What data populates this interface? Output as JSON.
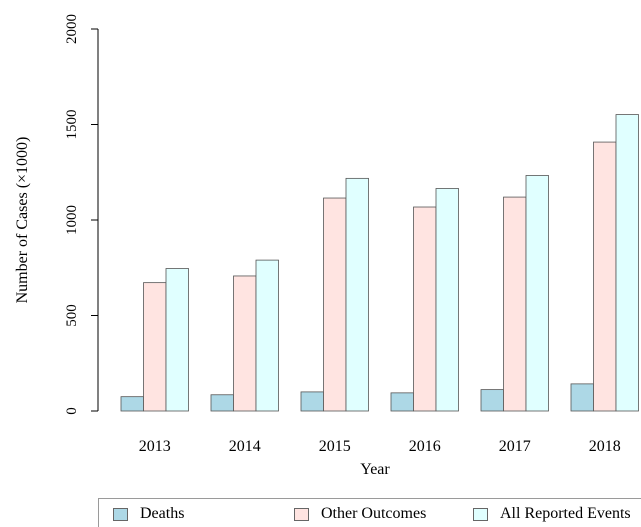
{
  "chart_data": {
    "type": "bar",
    "title": "",
    "xlabel": "Year",
    "ylabel": "Number of Cases (×1000)",
    "categories": [
      "2013",
      "2014",
      "2015",
      "2016",
      "2017",
      "2018"
    ],
    "ylim": [
      0,
      2000
    ],
    "yticks": [
      0,
      500,
      1000,
      1500,
      2000
    ],
    "grid": false,
    "legend_position": "bottom",
    "series": [
      {
        "name": "Deaths",
        "color": "#add8e6",
        "values": [
          75,
          85,
          100,
          95,
          112,
          142
        ]
      },
      {
        "name": "Other Outcomes",
        "color": "#ffe4e1",
        "values": [
          672,
          707,
          1115,
          1068,
          1120,
          1408
        ]
      },
      {
        "name": "All Reported Events",
        "color": "#e0ffff",
        "values": [
          746,
          790,
          1218,
          1165,
          1233,
          1552
        ]
      }
    ]
  }
}
